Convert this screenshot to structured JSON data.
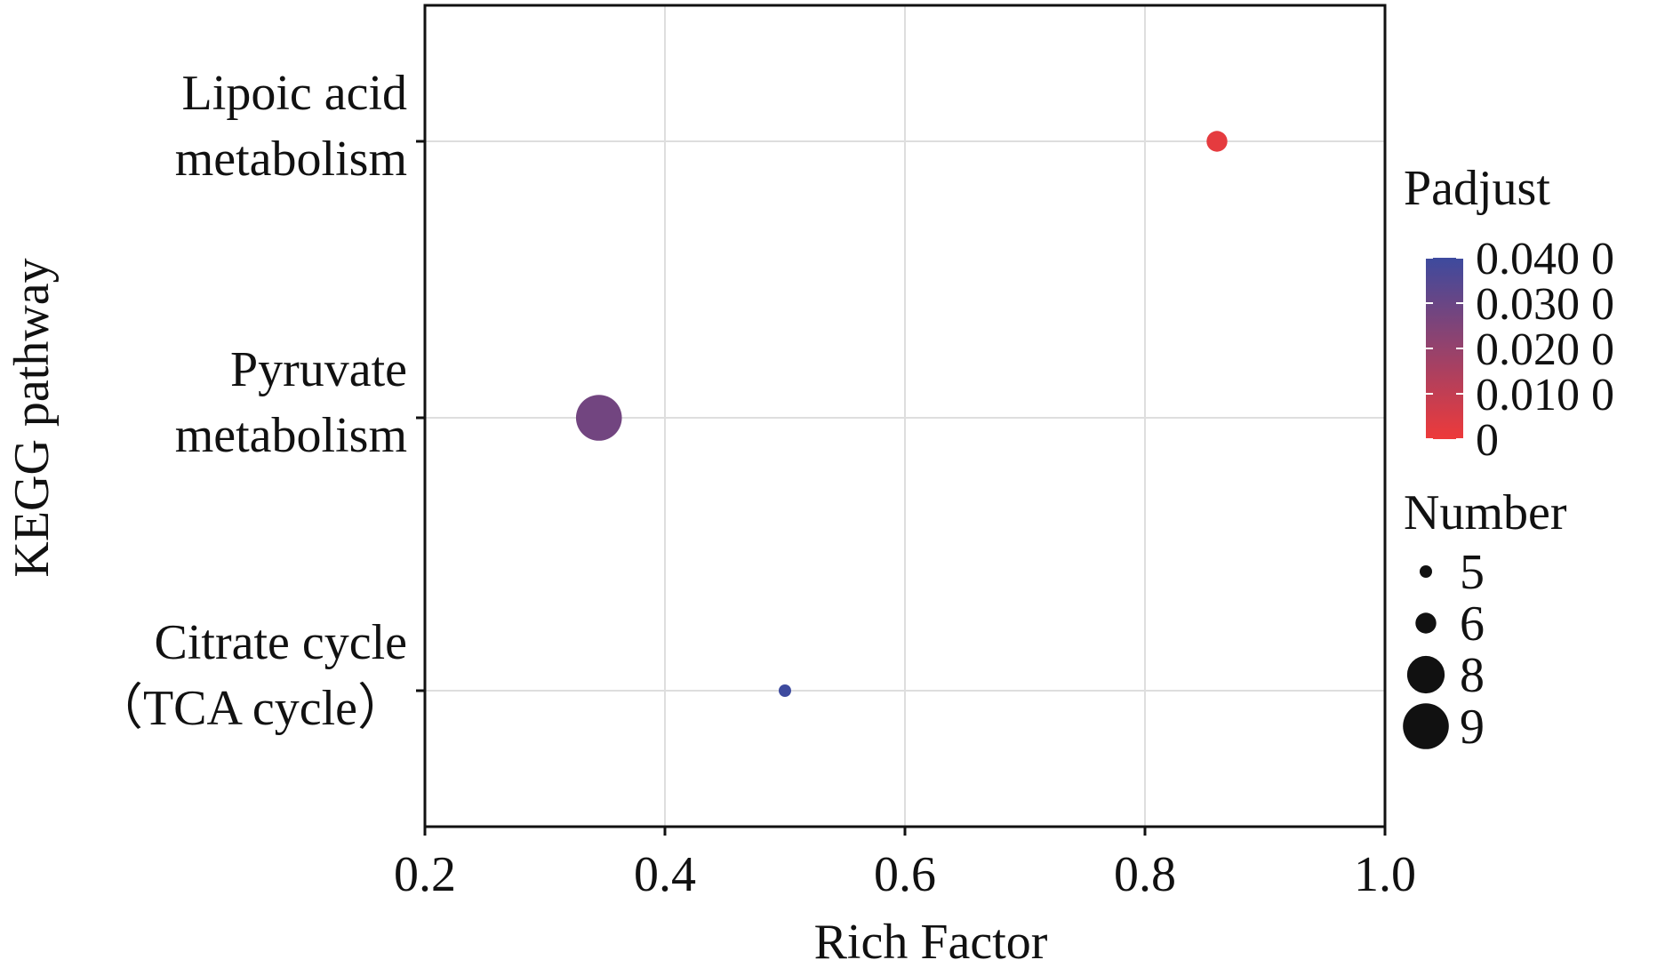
{
  "colors": {
    "low": "#ee3a3a",
    "high": "#3d4a9e",
    "grid": "#dedede",
    "axis": "#111111"
  },
  "chart_data": {
    "type": "scatter",
    "xlabel": "Rich Factor",
    "ylabel": "KEGG pathway",
    "xlim": [
      0.2,
      1.0
    ],
    "x_ticks": [
      "0.2",
      "0.4",
      "0.6",
      "0.8",
      "1.0"
    ],
    "x_tick_values": [
      0.2,
      0.4,
      0.6,
      0.8,
      1.0
    ],
    "grid": true,
    "categories": [
      [
        "Lipoic acid",
        "metabolism"
      ],
      [
        "Pyruvate",
        "metabolism"
      ],
      [
        "Citrate cycle",
        "（TCA cycle）"
      ]
    ],
    "points": [
      {
        "pathway": "Lipoic acid metabolism",
        "rich_factor": 0.86,
        "number": 6,
        "padjust": 0.002
      },
      {
        "pathway": "Pyruvate metabolism",
        "rich_factor": 0.345,
        "number": 9,
        "padjust": 0.028
      },
      {
        "pathway": "Citrate cycle (TCA cycle)",
        "rich_factor": 0.5,
        "number": 5,
        "padjust": 0.04
      }
    ],
    "color_legend": {
      "title": "Padjust",
      "min": 0,
      "max": 0.04,
      "tick_values": [
        0.04,
        0.03,
        0.02,
        0.01,
        0
      ],
      "tick_labels": [
        "0.040 0",
        "0.030 0",
        "0.020 0",
        "0.010 0",
        "0"
      ]
    },
    "size_legend": {
      "title": "Number",
      "values": [
        5,
        6,
        8,
        9
      ],
      "labels": [
        "5",
        "6",
        "8",
        "9"
      ]
    }
  }
}
